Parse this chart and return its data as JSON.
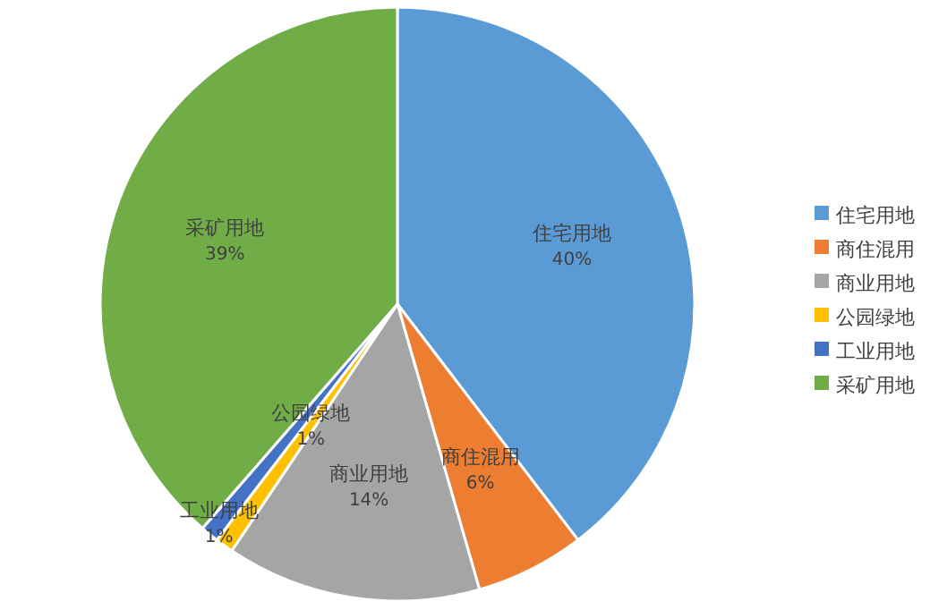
{
  "chart_data": {
    "type": "pie",
    "categories": [
      "住宅用地",
      "商住混用",
      "商业用地",
      "公园绿地",
      "工业用地",
      "采矿用地"
    ],
    "values": [
      40,
      6,
      14,
      1,
      1,
      39
    ],
    "value_labels": [
      "40%",
      "6%",
      "14%",
      "1%",
      "1%",
      "39%"
    ],
    "colors": [
      "#5b9bd5",
      "#ed7d31",
      "#a5a5a5",
      "#ffc000",
      "#4472c4",
      "#70ad47"
    ],
    "legend": "right"
  }
}
